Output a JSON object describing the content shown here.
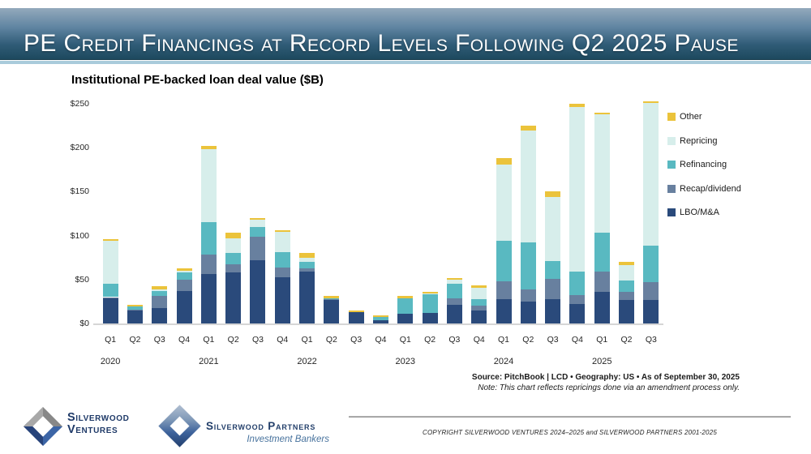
{
  "slide": {
    "title": "PE Credit Financings at Record Levels Following Q2 2025 Pause"
  },
  "chart": {
    "title": "Institutional PE-backed loan deal value ($B)",
    "source_line": "Source: PitchBook | LCD  •  Geography: US  •  As of September 30, 2025",
    "note_line": "Note: This chart reflects repricings done via an amendment process only."
  },
  "chart_data": {
    "type": "bar",
    "stacked": true,
    "title": "Institutional PE-backed loan deal value ($B)",
    "ylim": [
      0,
      250
    ],
    "y_ticks": [
      "$0",
      "$50",
      "$100",
      "$150",
      "$200",
      "$250"
    ],
    "grid": false,
    "legend_position": "right",
    "categories": [
      "Q1 2020",
      "Q2 2020",
      "Q3 2020",
      "Q4 2020",
      "Q1 2021",
      "Q2 2021",
      "Q3 2021",
      "Q4 2021",
      "Q1 2022",
      "Q2 2022",
      "Q3 2022",
      "Q4 2022",
      "Q1 2023",
      "Q2 2023",
      "Q3 2023",
      "Q4 2023",
      "Q1 2024",
      "Q2 2024",
      "Q3 2024",
      "Q4 2024",
      "Q1 2025",
      "Q2 2025",
      "Q3 2025"
    ],
    "quarter_labels": [
      "Q1",
      "Q2",
      "Q3",
      "Q4",
      "Q1",
      "Q2",
      "Q3",
      "Q4",
      "Q1",
      "Q2",
      "Q3",
      "Q4",
      "Q1",
      "Q2",
      "Q3",
      "Q4",
      "Q1",
      "Q2",
      "Q3",
      "Q4",
      "Q1",
      "Q2",
      "Q3"
    ],
    "year_labels": [
      {
        "year": "2020",
        "slot": 0
      },
      {
        "year": "2021",
        "slot": 4
      },
      {
        "year": "2022",
        "slot": 8
      },
      {
        "year": "2023",
        "slot": 12
      },
      {
        "year": "2024",
        "slot": 16
      },
      {
        "year": "2025",
        "slot": 20
      }
    ],
    "series": [
      {
        "name": "LBO/M&A",
        "color": "#2a4a7b",
        "values": [
          29,
          15,
          18,
          37,
          56,
          58,
          72,
          53,
          59,
          27,
          13,
          4,
          11,
          12,
          21,
          15,
          28,
          25,
          28,
          22,
          36,
          27,
          27
        ]
      },
      {
        "name": "Recap/dividend",
        "color": "#68809f",
        "values": [
          1,
          1,
          13,
          13,
          22,
          9,
          27,
          11,
          4,
          1,
          0,
          0,
          0,
          0,
          8,
          5,
          20,
          14,
          23,
          10,
          23,
          9,
          20
        ]
      },
      {
        "name": "Refinancing",
        "color": "#59b9c1",
        "values": [
          15,
          3,
          6,
          8,
          37,
          13,
          11,
          17,
          7,
          1,
          0,
          3,
          18,
          21,
          16,
          8,
          46,
          53,
          20,
          27,
          44,
          13,
          42
        ]
      },
      {
        "name": "Repricing",
        "color": "#d7eeeb",
        "values": [
          49,
          0,
          2,
          2,
          83,
          17,
          8,
          23,
          5,
          0,
          0,
          0,
          0,
          1,
          5,
          13,
          87,
          128,
          73,
          187,
          135,
          17,
          162
        ]
      },
      {
        "name": "Other",
        "color": "#ebc33b",
        "values": [
          2,
          2,
          3,
          3,
          4,
          6,
          2,
          2,
          5,
          2,
          2,
          2,
          2,
          2,
          2,
          2,
          7,
          5,
          6,
          4,
          2,
          4,
          2
        ]
      }
    ],
    "totals": [
      96,
      21,
      42,
      63,
      202,
      103,
      120,
      106,
      80,
      31,
      15,
      9,
      31,
      36,
      52,
      43,
      188,
      225,
      150,
      250,
      240,
      70,
      253
    ],
    "legend": [
      {
        "label": "Other",
        "color": "#ebc33b"
      },
      {
        "label": "Repricing",
        "color": "#d7eeeb"
      },
      {
        "label": "Refinancing",
        "color": "#59b9c1"
      },
      {
        "label": "Recap/dividend",
        "color": "#68809f"
      },
      {
        "label": "LBO/M&A",
        "color": "#2a4a7b"
      }
    ]
  },
  "footer": {
    "ventures_logo": {
      "line1": "Silverwood",
      "line2": "Ventures"
    },
    "partners_logo": {
      "name": "Silverwood Partners",
      "tagline": "Investment Bankers"
    },
    "copyright": "COPYRIGHT SILVERWOOD VENTURES 2024–2025 and SILVERWOOD PARTNERS 2001-2025"
  }
}
